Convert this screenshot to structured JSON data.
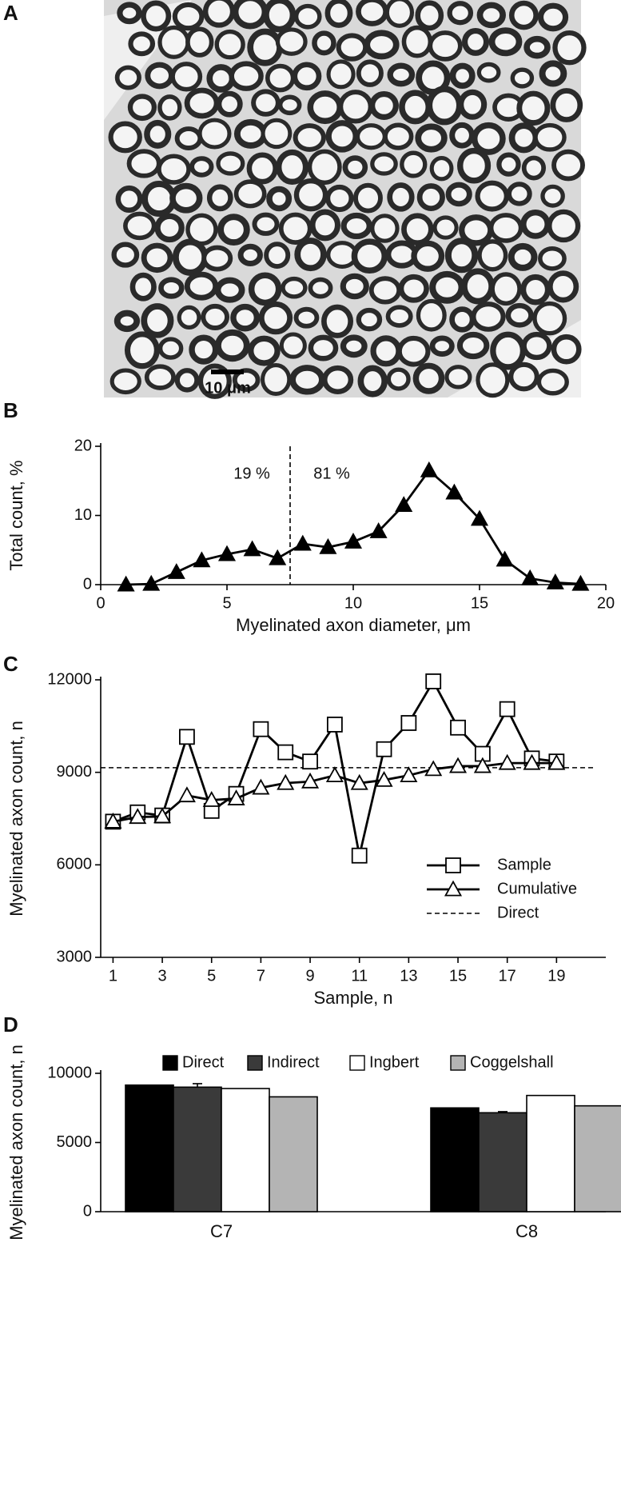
{
  "panel_labels": [
    "A",
    "B",
    "C",
    "D"
  ],
  "micrograph": {
    "scale_label": "10 μm"
  },
  "chart_data": [
    {
      "type": "line",
      "marker": "triangle",
      "color": "#000000",
      "xlabel": "Myelinated axon diameter, μm",
      "ylabel": "Total count, %",
      "x": [
        1,
        2,
        3,
        4,
        5,
        6,
        7,
        8,
        9,
        10,
        11,
        12,
        13,
        14,
        15,
        16,
        17,
        18,
        19
      ],
      "series": [
        {
          "name": null,
          "color": "#000000",
          "values": [
            0,
            0.1,
            1.8,
            3.5,
            4.4,
            5.1,
            3.8,
            5.9,
            5.4,
            6.2,
            7.7,
            11.5,
            16.5,
            13.3,
            9.5,
            3.6,
            0.9,
            0.3,
            0.1
          ]
        }
      ],
      "xlim": [
        0,
        20
      ],
      "xticks": [
        0,
        5,
        10,
        15,
        20
      ],
      "ylim": [
        0,
        20
      ],
      "yticks": [
        0,
        10,
        20
      ],
      "reference_x": 7.5,
      "annotations": [
        "19 %",
        "81 %"
      ]
    },
    {
      "type": "line",
      "xlabel": "Sample, n",
      "ylabel": "Myelinated axon count, n",
      "x": [
        1,
        2,
        3,
        4,
        5,
        6,
        7,
        8,
        9,
        10,
        11,
        12,
        13,
        14,
        15,
        16,
        17,
        18,
        19
      ],
      "series": [
        {
          "name": "Sample",
          "color": "#000000",
          "marker": "square",
          "values": [
            7400,
            7700,
            7600,
            10150,
            7750,
            8300,
            10400,
            9650,
            9350,
            10550,
            6300,
            9750,
            10600,
            11950,
            10450,
            9600,
            11050,
            9450,
            9350
          ]
        },
        {
          "name": "Cumulative",
          "color": "#000000",
          "marker": "triangle",
          "values": [
            7400,
            7550,
            7570,
            8250,
            8100,
            8150,
            8500,
            8650,
            8700,
            8900,
            8650,
            8750,
            8900,
            9100,
            9200,
            9200,
            9300,
            9300,
            9300
          ]
        }
      ],
      "reference_y": 9150,
      "reference_label": "Direct",
      "xlim": [
        0.5,
        21
      ],
      "xticks": [
        1,
        3,
        5,
        7,
        9,
        11,
        13,
        15,
        17,
        19
      ],
      "ylim": [
        3000,
        12000
      ],
      "yticks": [
        3000,
        6000,
        9000,
        12000
      ],
      "legend": "lower right"
    },
    {
      "type": "bar",
      "ylabel": "Myelinated axon count, n",
      "categories": [
        "C7",
        "C8"
      ],
      "series": [
        {
          "name": "Direct",
          "color": "#000000",
          "values": [
            9150,
            7500
          ]
        },
        {
          "name": "Indirect",
          "color": "#3a3a3a",
          "values": [
            9000,
            7150
          ],
          "errors": [
            250,
            80
          ]
        },
        {
          "name": "Ingbert",
          "color": "#ffffff",
          "values": [
            8900,
            8400
          ]
        },
        {
          "name": "Coggelshall",
          "color": "#b4b4b4",
          "values": [
            8300,
            7650
          ]
        }
      ],
      "ylim": [
        0,
        10000
      ],
      "yticks": [
        0,
        5000,
        10000
      ],
      "legend": "top"
    }
  ]
}
